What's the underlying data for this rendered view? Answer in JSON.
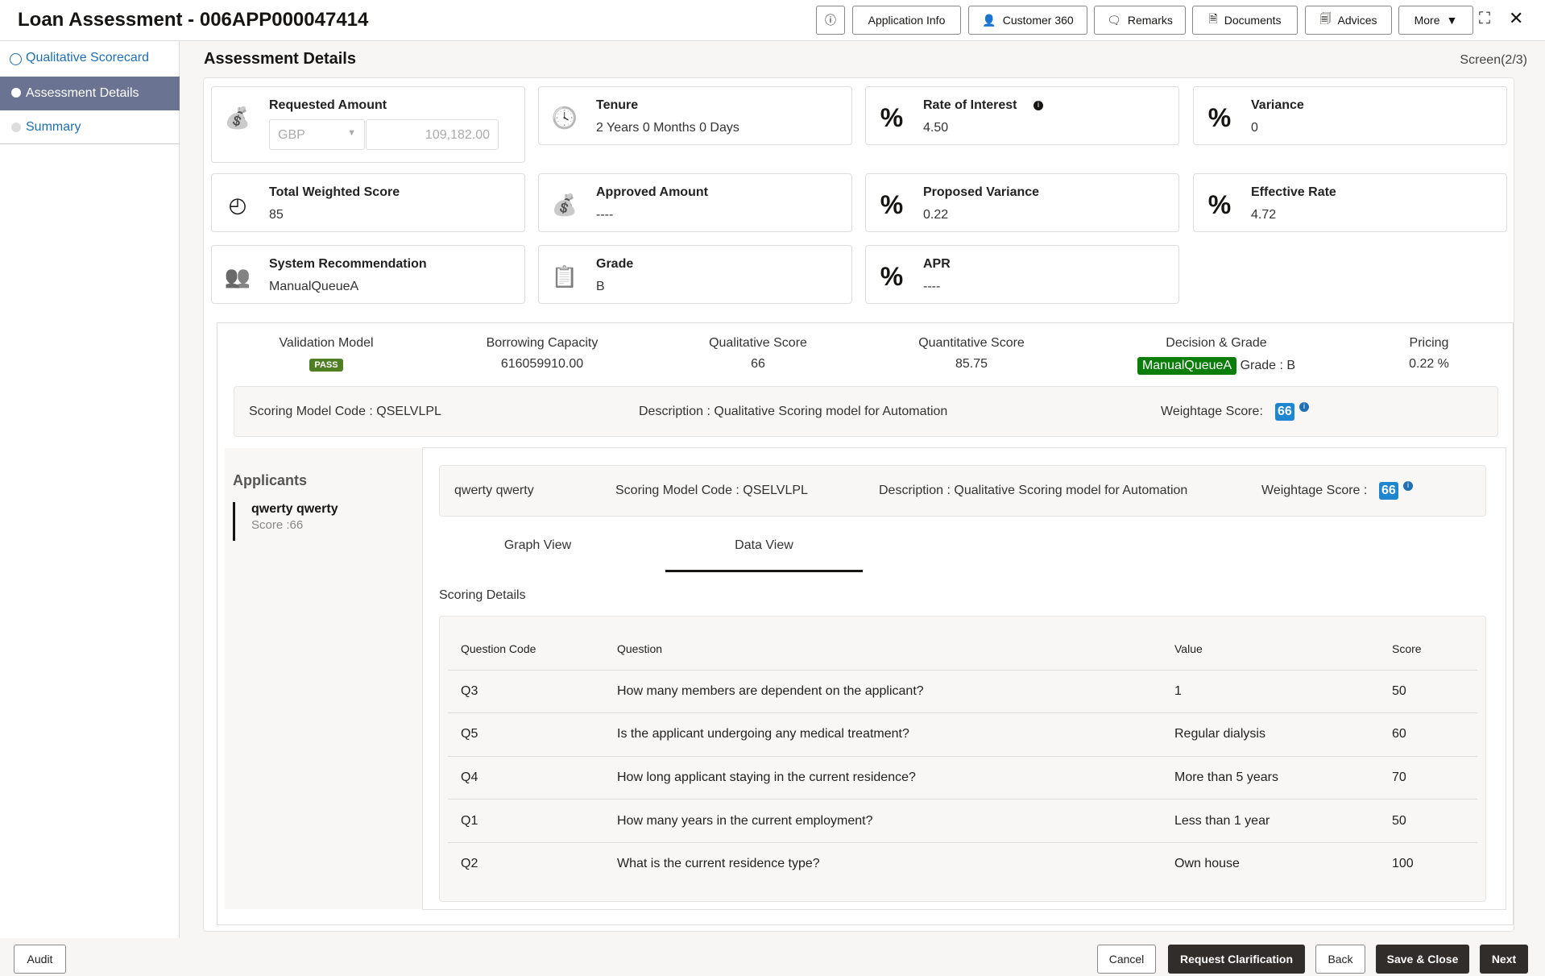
{
  "header": {
    "title": "Loan Assessment - 006APP000047414",
    "buttons": [
      "Application Info",
      "Customer 360",
      "Remarks",
      "Documents",
      "Advices",
      "More"
    ]
  },
  "sidebar": {
    "items": [
      {
        "label": "Qualitative Scorecard"
      },
      {
        "label": "Assessment Details"
      },
      {
        "label": "Summary"
      }
    ]
  },
  "page": {
    "title": "Assessment Details",
    "screen": "Screen(2/3)"
  },
  "cards": [
    {
      "label": "Requested Amount",
      "currency": "GBP",
      "amount": "109,182.00",
      "icon": "money-bag-icon"
    },
    {
      "label": "Tenure",
      "value": "2 Years 0 Months 0 Days",
      "icon": "clock-icon"
    },
    {
      "label": "Rate of Interest",
      "value": "4.50",
      "icon": "percent-icon"
    },
    {
      "label": "Variance",
      "value": "0",
      "icon": "percent-icon"
    },
    {
      "label": "Total Weighted Score",
      "value": "85",
      "icon": "gauge-icon"
    },
    {
      "label": "Approved Amount",
      "value": "----",
      "icon": "money-bag-icon"
    },
    {
      "label": "Proposed Variance",
      "value": "0.22",
      "icon": "percent-icon"
    },
    {
      "label": "Effective Rate",
      "value": "4.72",
      "icon": "percent-icon"
    },
    {
      "label": "System Recommendation",
      "value": "ManualQueueA",
      "icon": "users-icon"
    },
    {
      "label": "Grade",
      "value": "B",
      "icon": "clipboard-icon"
    },
    {
      "label": "APR",
      "value": "----",
      "icon": "percent-icon"
    }
  ],
  "summary_tabs": [
    {
      "label": "Validation Model",
      "value": "PASS"
    },
    {
      "label": "Borrowing Capacity",
      "value": "616059910.00"
    },
    {
      "label": "Qualitative Score",
      "value": "66"
    },
    {
      "label": "Quantitative Score",
      "value": "85.75"
    },
    {
      "label": "Decision & Grade",
      "value": "ManualQueueA",
      "grade": "Grade : B"
    },
    {
      "label": "Pricing",
      "value": "0.22 %"
    }
  ],
  "scoring_bar": {
    "code": "Scoring Model Code : QSELVLPL",
    "description": "Description : Qualitative Scoring model for Automation",
    "weightage_label": "Weightage Score:",
    "weightage": "66"
  },
  "applicants": {
    "title": "Applicants",
    "items": [
      {
        "name": "qwerty qwerty",
        "score": "Score :66"
      }
    ]
  },
  "applicant_bar": {
    "name": "qwerty qwerty",
    "code": "Scoring Model Code : QSELVLPL",
    "description": "Description : Qualitative Scoring model for Automation",
    "weightage_label": "Weightage Score :",
    "weightage": "66"
  },
  "view_tabs": [
    "Graph View",
    "Data View"
  ],
  "scoring_details": {
    "title": "Scoring Details",
    "columns": [
      "Question Code",
      "Question",
      "Value",
      "Score"
    ],
    "rows": [
      [
        "Q3",
        "How many members are dependent on the applicant?",
        "1",
        "50"
      ],
      [
        "Q5",
        "Is the applicant undergoing any medical treatment?",
        "Regular dialysis",
        "60"
      ],
      [
        "Q4",
        "How long applicant staying in the current residence?",
        "More than 5 years",
        "70"
      ],
      [
        "Q1",
        "How many years in the current employment?",
        "Less than 1 year",
        "50"
      ],
      [
        "Q2",
        "What is the current residence type?",
        "Own house",
        "100"
      ]
    ]
  },
  "footer": {
    "audit": "Audit",
    "cancel": "Cancel",
    "request": "Request Clarification",
    "back": "Back",
    "save": "Save & Close",
    "next": "Next"
  },
  "colors": {
    "pass": "#4e7f23",
    "decision": "#0a7d0a",
    "badge": "#1f86d0",
    "sidebar_active": "#6b7393"
  }
}
